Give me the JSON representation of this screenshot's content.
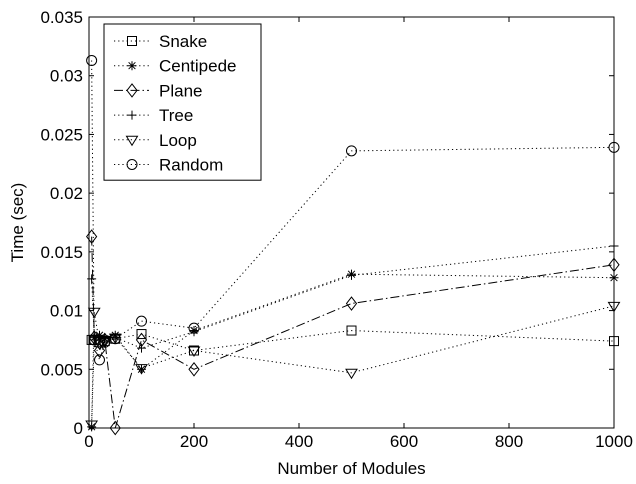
{
  "chart_data": {
    "type": "line",
    "title": "",
    "xlabel": "Number of Modules",
    "ylabel": "Time (sec)",
    "xlim": [
      0,
      1000
    ],
    "ylim": [
      0,
      0.035
    ],
    "xticks": [
      0,
      200,
      400,
      600,
      800,
      1000
    ],
    "xtick_labels": [
      "0",
      "200",
      "400",
      "600",
      "800",
      "1000"
    ],
    "yticks": [
      0,
      0.005,
      0.01,
      0.015,
      0.02,
      0.025,
      0.03,
      0.035
    ],
    "ytick_labels": [
      "0",
      "0.005",
      "0.01",
      "0.015",
      "0.02",
      "0.025",
      "0.03",
      "0.035"
    ],
    "grid": false,
    "legend_position": "top-left",
    "x": [
      5,
      10,
      20,
      30,
      50,
      100,
      200,
      500,
      1000
    ],
    "series": [
      {
        "name": "Snake",
        "marker": "square",
        "dash": "dotted",
        "values": [
          0.0075,
          0.0075,
          0.0073,
          0.0074,
          0.0076,
          0.008,
          0.0066,
          0.0083,
          0.0074
        ]
      },
      {
        "name": "Centipede",
        "marker": "asterisk",
        "dash": "dotted",
        "values": [
          0.0001,
          0.0077,
          0.0079,
          0.0076,
          0.0079,
          0.005,
          0.0083,
          0.0131,
          0.0128
        ]
      },
      {
        "name": "Plane",
        "marker": "diamond",
        "dash": "dashdot",
        "values": [
          0.0163,
          0.0077,
          0.0066,
          0.0075,
          0.0,
          0.0075,
          0.005,
          0.0106,
          0.0139
        ]
      },
      {
        "name": "Tree",
        "marker": "plus",
        "dash": "dotted",
        "values": [
          0.0127,
          0.0078,
          0.0077,
          0.0077,
          0.0077,
          0.0068,
          0.0082,
          0.013,
          0.0155
        ]
      },
      {
        "name": "Loop",
        "marker": "triangle-down",
        "dash": "dotted",
        "values": [
          0.0003,
          0.0099,
          0.0072,
          0.0075,
          0.0077,
          0.0051,
          0.0066,
          0.0047,
          0.0104
        ]
      },
      {
        "name": "Random",
        "marker": "circle",
        "dash": "dotted",
        "values": [
          0.0313,
          0.0075,
          0.0058,
          0.0073,
          0.0076,
          0.0091,
          0.0085,
          0.0236,
          0.0239
        ]
      }
    ]
  }
}
